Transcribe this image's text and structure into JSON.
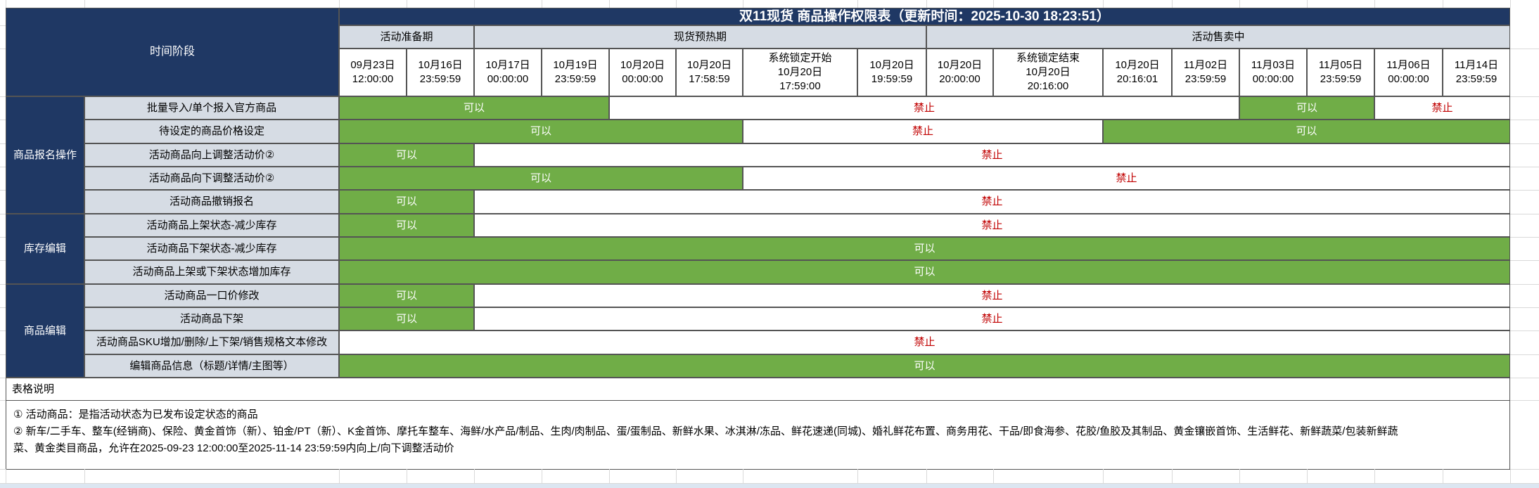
{
  "title": "双11现货 商品操作权限表（更新时间：2025-10-30 18:23:51）",
  "corner_label": "时间阶段",
  "colors": {
    "header_navy": "#1F3864",
    "header_gray_blue": "#D6DCE4",
    "allow_green": "#70AD47",
    "forbid_red": "#C00000",
    "bottom_strip_blue": "#DCE6F1"
  },
  "legend": {
    "allow_text": "可以",
    "forbid_text": "禁止"
  },
  "phases": [
    {
      "label": "活动准备期",
      "col_start": 1,
      "col_end": 2
    },
    {
      "label": "现货预热期",
      "col_start": 3,
      "col_end": 8
    },
    {
      "label": "活动售卖中",
      "col_start": 9,
      "col_end": 16
    }
  ],
  "time_columns": [
    "09月23日\n12:00:00",
    "10月16日\n23:59:59",
    "10月17日\n00:00:00",
    "10月19日\n23:59:59",
    "10月20日\n00:00:00",
    "10月20日\n17:58:59",
    "系统锁定开始\n10月20日\n17:59:00",
    "10月20日\n19:59:59",
    "10月20日\n20:00:00",
    "系统锁定结束\n10月20日\n20:16:00",
    "10月20日\n20:16:01",
    "11月02日\n23:59:59",
    "11月03日\n00:00:00",
    "11月05日\n23:59:59",
    "11月06日\n00:00:00",
    "11月14日\n23:59:59"
  ],
  "groups": [
    {
      "label": "商品报名操作",
      "row_start": 1,
      "row_end": 5
    },
    {
      "label": "库存编辑",
      "row_start": 6,
      "row_end": 8
    },
    {
      "label": "商品编辑",
      "row_start": 9,
      "row_end": 12
    }
  ],
  "rows": [
    {
      "label": "批量导入/单个报入官方商品",
      "spans": [
        {
          "text": "可以",
          "type": "allow",
          "col_start": 1,
          "col_end": 4
        },
        {
          "text": "禁止",
          "type": "forbid",
          "col_start": 5,
          "col_end": 12
        },
        {
          "text": "可以",
          "type": "allow",
          "col_start": 13,
          "col_end": 14
        },
        {
          "text": "禁止",
          "type": "forbid",
          "col_start": 15,
          "col_end": 16
        }
      ]
    },
    {
      "label": "待设定的商品价格设定",
      "spans": [
        {
          "text": "可以",
          "type": "allow",
          "col_start": 1,
          "col_end": 6
        },
        {
          "text": "禁止",
          "type": "forbid",
          "col_start": 7,
          "col_end": 10
        },
        {
          "text": "可以",
          "type": "allow",
          "col_start": 11,
          "col_end": 16
        }
      ]
    },
    {
      "label": "活动商品向上调整活动价②",
      "spans": [
        {
          "text": "可以",
          "type": "allow",
          "col_start": 1,
          "col_end": 2
        },
        {
          "text": "禁止",
          "type": "forbid",
          "col_start": 3,
          "col_end": 16
        }
      ]
    },
    {
      "label": "活动商品向下调整活动价②",
      "spans": [
        {
          "text": "可以",
          "type": "allow",
          "col_start": 1,
          "col_end": 6
        },
        {
          "text": "禁止",
          "type": "forbid",
          "col_start": 7,
          "col_end": 16
        }
      ]
    },
    {
      "label": "活动商品撤销报名",
      "spans": [
        {
          "text": "可以",
          "type": "allow",
          "col_start": 1,
          "col_end": 2
        },
        {
          "text": "禁止",
          "type": "forbid",
          "col_start": 3,
          "col_end": 16
        }
      ]
    },
    {
      "label": "活动商品上架状态-减少库存",
      "spans": [
        {
          "text": "可以",
          "type": "allow",
          "col_start": 1,
          "col_end": 2
        },
        {
          "text": "禁止",
          "type": "forbid",
          "col_start": 3,
          "col_end": 16
        }
      ]
    },
    {
      "label": "活动商品下架状态-减少库存",
      "spans": [
        {
          "text": "可以",
          "type": "allow",
          "col_start": 1,
          "col_end": 16
        }
      ]
    },
    {
      "label": "活动商品上架或下架状态增加库存",
      "spans": [
        {
          "text": "可以",
          "type": "allow",
          "col_start": 1,
          "col_end": 16
        }
      ]
    },
    {
      "label": "活动商品一口价修改",
      "spans": [
        {
          "text": "可以",
          "type": "allow",
          "col_start": 1,
          "col_end": 2
        },
        {
          "text": "禁止",
          "type": "forbid",
          "col_start": 3,
          "col_end": 16
        }
      ]
    },
    {
      "label": "活动商品下架",
      "spans": [
        {
          "text": "可以",
          "type": "allow",
          "col_start": 1,
          "col_end": 2
        },
        {
          "text": "禁止",
          "type": "forbid",
          "col_start": 3,
          "col_end": 16
        }
      ]
    },
    {
      "label": "活动商品SKU增加/删除/上下架/销售规格文本修改",
      "spans": [
        {
          "text": "禁止",
          "type": "forbid",
          "col_start": 1,
          "col_end": 16
        }
      ]
    },
    {
      "label": "编辑商品信息（标题/详情/主图等）",
      "spans": [
        {
          "text": "可以",
          "type": "allow",
          "col_start": 1,
          "col_end": 16
        }
      ]
    }
  ],
  "footer": {
    "section_title": "表格说明",
    "note1": "① 活动商品：是指活动状态为已发布设定状态的商品",
    "note2": "② 新车/二手车、整车(经销商)、保险、黄金首饰（新）、铂金/PT（新）、K金首饰、摩托车整车、海鲜/水产品/制品、生肉/肉制品、蛋/蛋制品、新鲜水果、冰淇淋/冻品、鲜花速递(同城)、婚礼鲜花布置、商务用花、干品/即食海参、花胶/鱼胶及其制品、黄金镶嵌首饰、生活鲜花、新鲜蔬菜/包装新鲜蔬\n菜、黄金类目商品，允许在2025-09-23 12:00:00至2025-11-14 23:59:59内向上/向下调整活动价"
  }
}
